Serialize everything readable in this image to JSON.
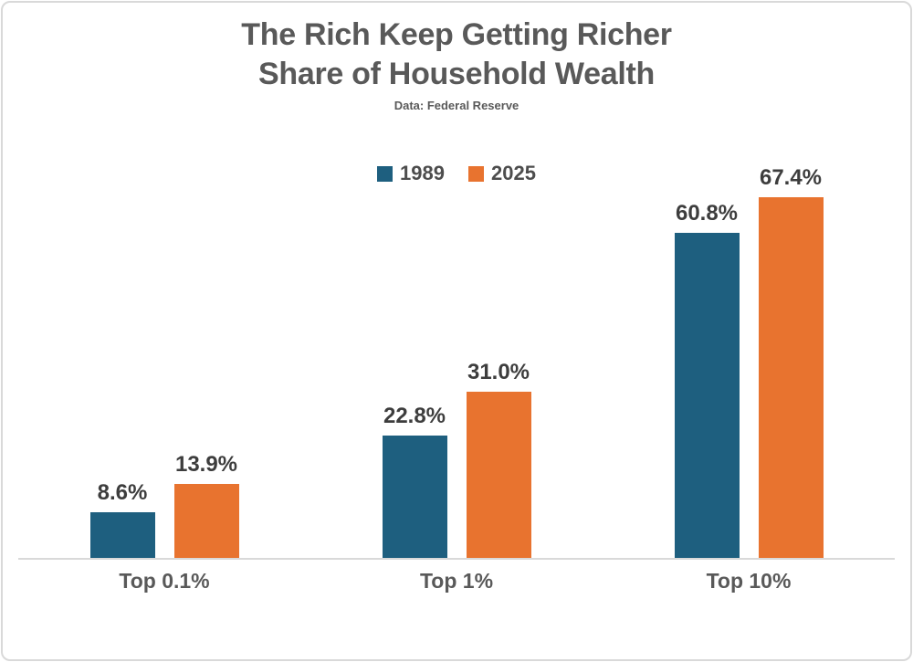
{
  "header": {
    "title_line1": "The Rich Keep Getting Richer",
    "title_line2": "Share of Household Wealth",
    "source": "Data: Federal Reserve"
  },
  "chart_data": {
    "type": "bar",
    "title": "The Rich Keep Getting Richer",
    "subtitle": "Share of Household Wealth",
    "source_note": "Data: Federal Reserve",
    "categories": [
      "Top 0.1%",
      "Top 1%",
      "Top 10%"
    ],
    "series": [
      {
        "name": "1989",
        "color": "#1E5F7F",
        "values": [
          8.6,
          22.8,
          60.8
        ]
      },
      {
        "name": "2025",
        "color": "#E8732F",
        "values": [
          13.9,
          31.0,
          67.4
        ]
      }
    ],
    "value_label_suffix": "%",
    "xlabel": "",
    "ylabel": "",
    "ylim": [
      0,
      78.5
    ],
    "grid": false,
    "legend_position": "top-center"
  },
  "colors": {
    "title_text": "#595959",
    "value_label_text": "#3d3d3d",
    "category_label_text": "#595959",
    "axis_line": "#d9d9d9",
    "card_border": "#d9d9d9"
  }
}
